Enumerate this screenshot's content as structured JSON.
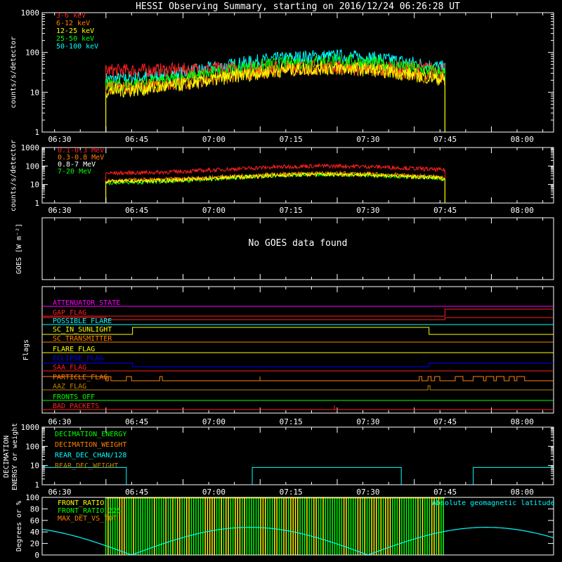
{
  "title": "HESSI Observing Summary, starting on 2016/12/24 06:26:28 UT",
  "colors": {
    "background": "#000000",
    "axes": "#ffffff",
    "red": "#ff2020",
    "orange": "#ff8000",
    "yellow": "#ffff00",
    "green": "#00ff00",
    "cyan": "#00ffff",
    "magenta": "#ff00ff",
    "blue": "#0000ff",
    "olive": "#c08000"
  },
  "chart_data": [
    {
      "id": "hxr",
      "type": "line",
      "ylabel": "counts/s/detector",
      "yscale": "log",
      "ylim": [
        1,
        1000
      ],
      "ytick_labels": [
        "1",
        "10",
        "100",
        "1000"
      ],
      "xlim_utc": [
        "06:26:28",
        "08:06:28"
      ],
      "xtick_labels": [
        "06:30",
        "06:45",
        "07:00",
        "07:15",
        "07:30",
        "07:45",
        "08:00"
      ],
      "data_window_utc": [
        "06:39:00",
        "07:45:00"
      ],
      "series": [
        {
          "name": "3-6 keV",
          "color": "#ff2020",
          "peak": 45,
          "edge": 35
        },
        {
          "name": "6-12 keV",
          "color": "#ff8000",
          "peak": 40,
          "edge": 12
        },
        {
          "name": "12-25 keV",
          "color": "#ffff00",
          "peak": 40,
          "edge": 10
        },
        {
          "name": "25-50 keV",
          "color": "#00ff00",
          "peak": 60,
          "edge": 14
        },
        {
          "name": "50-100 keV",
          "color": "#00ffff",
          "peak": 80,
          "edge": 20
        }
      ]
    },
    {
      "id": "gamma",
      "type": "line",
      "ylabel": "counts/s/detector",
      "yscale": "log",
      "ylim": [
        1,
        1000
      ],
      "ytick_labels": [
        "1",
        "10",
        "100",
        "1000"
      ],
      "xtick_labels": [
        "06:30",
        "06:45",
        "07:00",
        "07:15",
        "07:30",
        "07:45",
        "08:00"
      ],
      "data_window_utc": [
        "06:39:00",
        "07:45:00"
      ],
      "series": [
        {
          "name": "0.1-0.3 MeV",
          "color": "#ff2020",
          "peak": 100,
          "edge": 40
        },
        {
          "name": "0.3-0.8 MeV",
          "color": "#ff8000",
          "peak": 40,
          "edge": 16
        },
        {
          "name": "0.8-7 MeV",
          "color": "#ffffff",
          "peak": 35,
          "edge": 14
        },
        {
          "name": "7-20 MeV",
          "color": "#00ff00",
          "peak": 35,
          "edge": 12
        }
      ]
    },
    {
      "id": "goes",
      "type": "line",
      "ylabel": "GOES [W m⁻²]",
      "message": "No GOES data found",
      "series": []
    },
    {
      "id": "flags",
      "type": "line",
      "ylabel": "Flags",
      "xtick_labels": [
        "06:30",
        "06:45",
        "07:00",
        "07:15",
        "07:30",
        "07:45",
        "08:00"
      ],
      "series": [
        {
          "name": "ATTENUATOR_STATE",
          "color": "#ff00ff"
        },
        {
          "name": "GAP_FLAG",
          "color": "#ff2020"
        },
        {
          "name": "POSSIBLE_FLARE",
          "color": "#00ffff"
        },
        {
          "name": "SC_IN_SUNLIGHT",
          "color": "#ffff00"
        },
        {
          "name": "SC_TRANSMITTER",
          "color": "#ff8000"
        },
        {
          "name": "FLARE_FLAG",
          "color": "#ffff00"
        },
        {
          "name": "ECLIPSE_FLAG",
          "color": "#0000ff"
        },
        {
          "name": "SAA_FLAG",
          "color": "#ff2020"
        },
        {
          "name": "PARTICLE_FLAG",
          "color": "#ff8000"
        },
        {
          "name": "AAZ_FLAG",
          "color": "#c08000"
        },
        {
          "name": "FRONTS_OFF",
          "color": "#00ff00"
        },
        {
          "name": "BAD_PACKETS",
          "color": "#ff2020"
        }
      ]
    },
    {
      "id": "decimation",
      "type": "line",
      "ylabel": "DECIMATION ENERGY or weight",
      "yscale": "log",
      "ylim": [
        1,
        1000
      ],
      "ytick_labels": [
        "1",
        "10",
        "100",
        "1000"
      ],
      "xtick_labels": [
        "06:30",
        "06:45",
        "07:00",
        "07:15",
        "07:30",
        "07:45",
        "08:00"
      ],
      "series": [
        {
          "name": "DECIMATION_ENERGY",
          "color": "#00ff00"
        },
        {
          "name": "DECIMATION_WEIGHT",
          "color": "#ff8000"
        },
        {
          "name": "REAR_DEC_CHAN/128",
          "color": "#00ffff"
        },
        {
          "name": "REAR_DEC_WEIGHT",
          "color": "#c08000"
        }
      ]
    },
    {
      "id": "ratios",
      "type": "line",
      "ylabel": "Degrees or %",
      "ylim": [
        0,
        100
      ],
      "ytick_labels": [
        "0",
        "20",
        "40",
        "60",
        "80",
        "100"
      ],
      "series": [
        {
          "name": "FRONT_RATIO",
          "color": "#ffff00"
        },
        {
          "name": "FRONT_RATIO_225",
          "color": "#00ff00"
        },
        {
          "name": "MAX_DET_VS_TOT",
          "color": "#ff8000"
        },
        {
          "name": "Absolute geomagnetic latitude",
          "color": "#00ffff"
        }
      ]
    }
  ]
}
